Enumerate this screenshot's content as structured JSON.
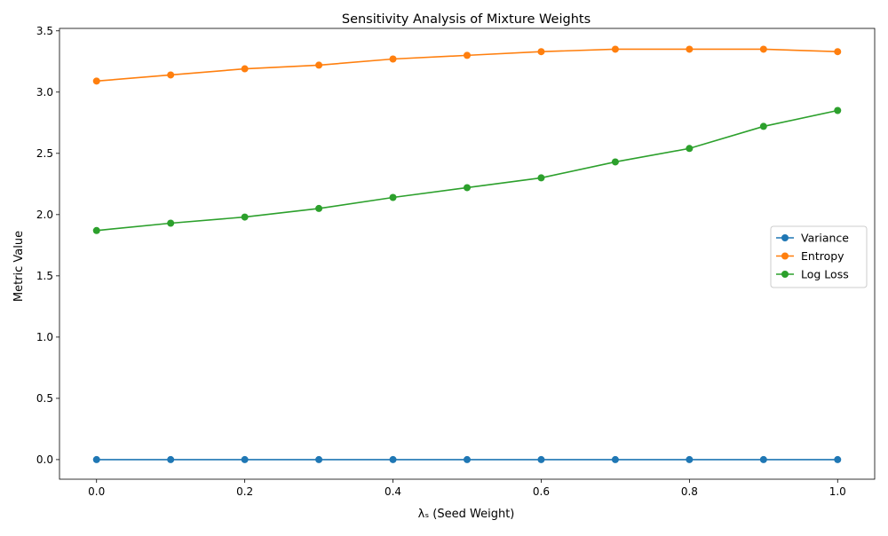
{
  "chart_data": {
    "type": "line",
    "title": "Sensitivity Analysis of Mixture Weights",
    "xlabel": "λₛ (Seed Weight)",
    "ylabel": "Metric Value",
    "x": [
      0.0,
      0.1,
      0.2,
      0.3,
      0.4,
      0.5,
      0.6,
      0.7,
      0.8,
      0.9,
      1.0
    ],
    "xlim": [
      -0.05,
      1.05
    ],
    "ylim": [
      -0.16,
      3.52
    ],
    "xticks": [
      0.0,
      0.2,
      0.4,
      0.6,
      0.8,
      1.0
    ],
    "xtick_labels": [
      "0.0",
      "0.2",
      "0.4",
      "0.6",
      "0.8",
      "1.0"
    ],
    "yticks": [
      0.0,
      0.5,
      1.0,
      1.5,
      2.0,
      2.5,
      3.0,
      3.5
    ],
    "ytick_labels": [
      "0.0",
      "0.5",
      "1.0",
      "1.5",
      "2.0",
      "2.5",
      "3.0",
      "3.5"
    ],
    "grid": false,
    "legend_position": "center-right",
    "series": [
      {
        "name": "Variance",
        "color": "#1f77b4",
        "marker": "circle",
        "values": [
          0.0,
          0.0,
          0.0,
          0.0,
          0.0,
          0.0,
          0.0,
          0.0,
          0.0,
          0.0,
          0.0
        ]
      },
      {
        "name": "Entropy",
        "color": "#ff7f0e",
        "marker": "circle",
        "values": [
          3.09,
          3.14,
          3.19,
          3.22,
          3.27,
          3.3,
          3.33,
          3.35,
          3.35,
          3.35,
          3.33
        ]
      },
      {
        "name": "Log Loss",
        "color": "#2ca02c",
        "marker": "circle",
        "values": [
          1.87,
          1.93,
          1.98,
          2.05,
          2.14,
          2.22,
          2.3,
          2.43,
          2.54,
          2.72,
          2.85
        ]
      }
    ]
  }
}
